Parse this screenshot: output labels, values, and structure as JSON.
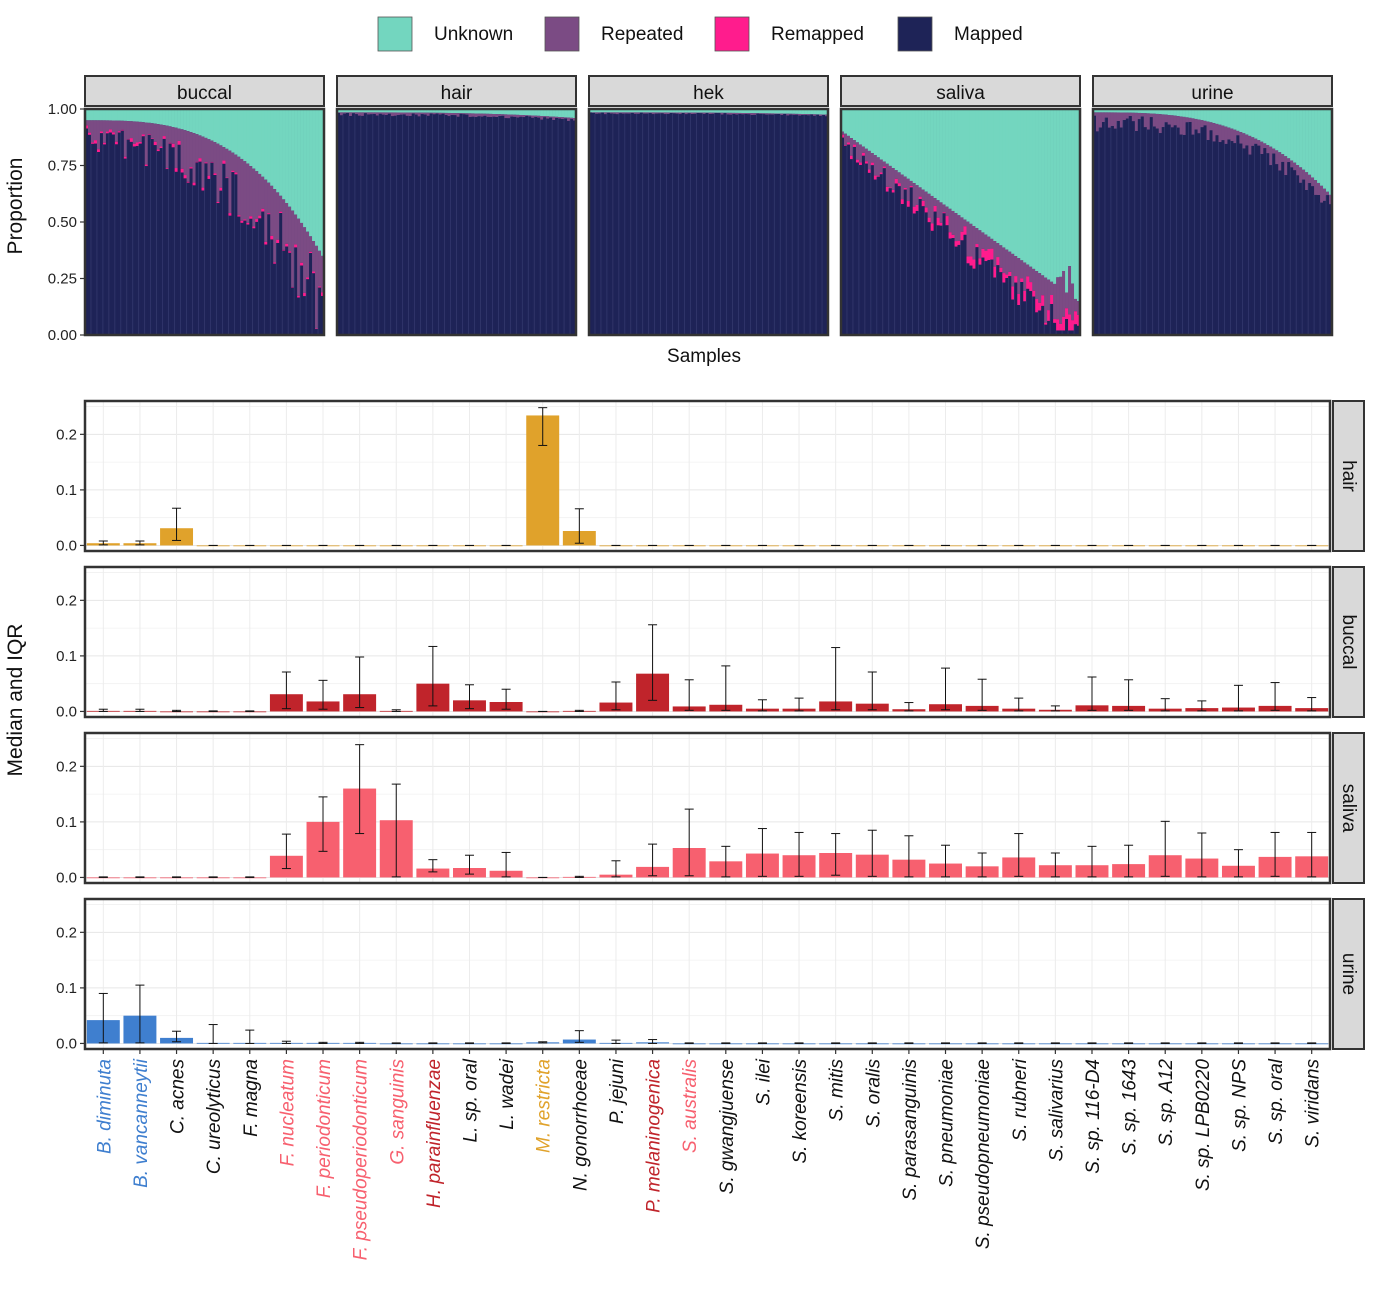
{
  "chart_data": [
    {
      "type": "bar",
      "subtype": "stacked-proportion",
      "xlabel": "Samples",
      "ylabel": "Proportion",
      "ylim": [
        0,
        1
      ],
      "y_ticks": [
        "0.00",
        "0.25",
        "0.50",
        "0.75",
        "1.00"
      ],
      "legend": {
        "placement": "top",
        "entries": [
          {
            "label": "Unknown",
            "color": "#73d6bf"
          },
          {
            "label": "Repeated",
            "color": "#7b4b84"
          },
          {
            "label": "Remapped",
            "color": "#ff1c8d"
          },
          {
            "label": "Mapped",
            "color": "#1e2357"
          }
        ]
      },
      "facets": [
        {
          "name": "buccal",
          "samples": 80,
          "unknown_end": 0.95,
          "unknown_start": 0.35,
          "repeated_mean": 0.15,
          "remapped_mean": 0.01
        },
        {
          "name": "hair",
          "samples": 80,
          "unknown_end": 0.985,
          "unknown_start": 0.96,
          "repeated_mean": 0.01,
          "remapped_mean": 0.0
        },
        {
          "name": "hek",
          "samples": 80,
          "unknown_end": 0.985,
          "unknown_start": 0.975,
          "repeated_mean": 0.005,
          "remapped_mean": 0.0
        },
        {
          "name": "saliva",
          "samples": 80,
          "unknown_end": 0.9,
          "unknown_start": 0.15,
          "repeated_mean": 0.09,
          "remapped_mean": 0.025
        },
        {
          "name": "urine",
          "samples": 80,
          "unknown_end": 0.985,
          "unknown_start": 0.62,
          "repeated_mean": 0.05,
          "remapped_mean": 0.0
        }
      ]
    },
    {
      "type": "bar",
      "subtype": "faceted-bar-with-error-bars",
      "ylabel": "Median and IQR",
      "ylim": [
        0,
        0.26
      ],
      "y_ticks": [
        "0.0",
        "0.1",
        "0.2"
      ],
      "categories": [
        "B. diminuta",
        "B. vancanneytii",
        "C. acnes",
        "C. ureolyticus",
        "F. magna",
        "F. nucleatum",
        "F. periodonticum",
        "F. pseudoperiodonticum",
        "G. sanguinis",
        "H. parainfluenzae",
        "L. sp. oral",
        "L. wadei",
        "M. restricta",
        "N. gonorrhoeae",
        "P. jejuni",
        "P. melaninogenica",
        "S. australis",
        "S. gwangjuense",
        "S. ilei",
        "S. koreensis",
        "S. mitis",
        "S. oralis",
        "S. parasanguinis",
        "S. pneumoniae",
        "S. pseudopneumoniae",
        "S. rubneri",
        "S. salivarius",
        "S. sp. 116-D4",
        "S. sp. 1643",
        "S. sp. A12",
        "S. sp. LPB0220",
        "S. sp. NPS",
        "S. sp. oral",
        "S. viridans"
      ],
      "category_colors": [
        "#3f7fcf",
        "#3f7fcf",
        "#111111",
        "#111111",
        "#111111",
        "#f7606f",
        "#f7606f",
        "#f7606f",
        "#f7606f",
        "#c0242b",
        "#111111",
        "#111111",
        "#e0a22b",
        "#111111",
        "#111111",
        "#c0242b",
        "#f7606f",
        "#111111",
        "#111111",
        "#111111",
        "#111111",
        "#111111",
        "#111111",
        "#111111",
        "#111111",
        "#111111",
        "#111111",
        "#111111",
        "#111111",
        "#111111",
        "#111111",
        "#111111",
        "#111111",
        "#111111"
      ],
      "series": [
        {
          "name": "hair",
          "color": "#e0a22b",
          "values": [
            0.004,
            0.004,
            0.031,
            0,
            0,
            0,
            0,
            0,
            0,
            0,
            0,
            0,
            0.234,
            0.026,
            0,
            0,
            0,
            0,
            0,
            0,
            0,
            0,
            0,
            0,
            0,
            0,
            0,
            0,
            0,
            0,
            0,
            0,
            0,
            0
          ],
          "lower": [
            0.001,
            0.001,
            0.009,
            0,
            0,
            0,
            0,
            0,
            0,
            0,
            0,
            0,
            0.18,
            0.004,
            0,
            0,
            0,
            0,
            0,
            0,
            0,
            0,
            0,
            0,
            0,
            0,
            0,
            0,
            0,
            0,
            0,
            0,
            0,
            0
          ],
          "upper": [
            0.008,
            0.008,
            0.067,
            0,
            0,
            0,
            0,
            0,
            0,
            0,
            0,
            0,
            0.248,
            0.066,
            0,
            0,
            0,
            0,
            0,
            0,
            0,
            0,
            0,
            0,
            0,
            0,
            0,
            0,
            0,
            0,
            0,
            0,
            0,
            0
          ]
        },
        {
          "name": "buccal",
          "color": "#c0242b",
          "values": [
            0.001,
            0.001,
            0,
            0,
            0,
            0.031,
            0.018,
            0.031,
            0.001,
            0.05,
            0.02,
            0.017,
            0,
            0.001,
            0.016,
            0.068,
            0.009,
            0.012,
            0.005,
            0.005,
            0.018,
            0.014,
            0.004,
            0.013,
            0.01,
            0.005,
            0.003,
            0.011,
            0.01,
            0.005,
            0.006,
            0.007,
            0.01,
            0.006
          ],
          "lower": [
            0,
            0,
            0,
            0,
            0,
            0.005,
            0.004,
            0.007,
            0,
            0.01,
            0.005,
            0.004,
            0,
            0,
            0.003,
            0.02,
            0.002,
            0.002,
            0.001,
            0.001,
            0.003,
            0.003,
            0.001,
            0.003,
            0.002,
            0.001,
            0.001,
            0.002,
            0.002,
            0.001,
            0.001,
            0.001,
            0.002,
            0.001
          ],
          "upper": [
            0.004,
            0.004,
            0.002,
            0.001,
            0.001,
            0.071,
            0.056,
            0.098,
            0.003,
            0.117,
            0.048,
            0.04,
            0,
            0.002,
            0.053,
            0.156,
            0.057,
            0.082,
            0.021,
            0.024,
            0.115,
            0.071,
            0.016,
            0.078,
            0.058,
            0.024,
            0.01,
            0.062,
            0.057,
            0.023,
            0.019,
            0.047,
            0.052,
            0.025
          ]
        },
        {
          "name": "saliva",
          "color": "#f7606f",
          "values": [
            0,
            0,
            0,
            0,
            0,
            0.039,
            0.1,
            0.16,
            0.103,
            0.016,
            0.017,
            0.012,
            0,
            0.001,
            0.005,
            0.019,
            0.053,
            0.029,
            0.043,
            0.04,
            0.044,
            0.041,
            0.032,
            0.025,
            0.02,
            0.036,
            0.022,
            0.022,
            0.024,
            0.04,
            0.034,
            0.021,
            0.037,
            0.038
          ],
          "lower": [
            0,
            0,
            0,
            0,
            0,
            0.016,
            0.047,
            0.079,
            0.001,
            0.01,
            0.006,
            0.001,
            0,
            0,
            0.001,
            0.003,
            0.003,
            0.001,
            0.002,
            0.002,
            0.004,
            0.002,
            0.001,
            0.001,
            0.001,
            0.002,
            0.001,
            0.001,
            0.001,
            0.002,
            0.001,
            0.001,
            0.002,
            0.001
          ],
          "upper": [
            0.001,
            0.001,
            0.001,
            0.001,
            0.001,
            0.078,
            0.145,
            0.239,
            0.168,
            0.032,
            0.04,
            0.045,
            0,
            0.002,
            0.03,
            0.06,
            0.123,
            0.056,
            0.088,
            0.081,
            0.079,
            0.085,
            0.075,
            0.058,
            0.044,
            0.079,
            0.044,
            0.056,
            0.058,
            0.101,
            0.08,
            0.05,
            0.081,
            0.081
          ]
        },
        {
          "name": "urine",
          "color": "#3f7fcf",
          "values": [
            0.042,
            0.05,
            0.01,
            0.001,
            0.001,
            0.001,
            0.001,
            0.001,
            0,
            0,
            0,
            0,
            0.002,
            0.007,
            0.001,
            0.002,
            0,
            0,
            0,
            0,
            0,
            0,
            0,
            0,
            0,
            0,
            0,
            0,
            0,
            0,
            0,
            0,
            0,
            0
          ],
          "lower": [
            0.001,
            0.001,
            0.003,
            0,
            0,
            0,
            0,
            0,
            0,
            0,
            0,
            0,
            0.001,
            0.002,
            0,
            0,
            0,
            0,
            0,
            0,
            0,
            0,
            0,
            0,
            0,
            0,
            0,
            0,
            0,
            0,
            0,
            0,
            0,
            0
          ],
          "upper": [
            0.09,
            0.105,
            0.022,
            0.034,
            0.024,
            0.004,
            0.002,
            0.002,
            0.001,
            0.001,
            0.001,
            0.001,
            0.003,
            0.023,
            0.006,
            0.007,
            0.001,
            0.001,
            0.001,
            0.001,
            0.001,
            0.001,
            0.001,
            0.001,
            0.001,
            0.001,
            0.001,
            0.001,
            0.001,
            0.001,
            0.001,
            0.001,
            0.001,
            0.001
          ]
        }
      ]
    }
  ]
}
